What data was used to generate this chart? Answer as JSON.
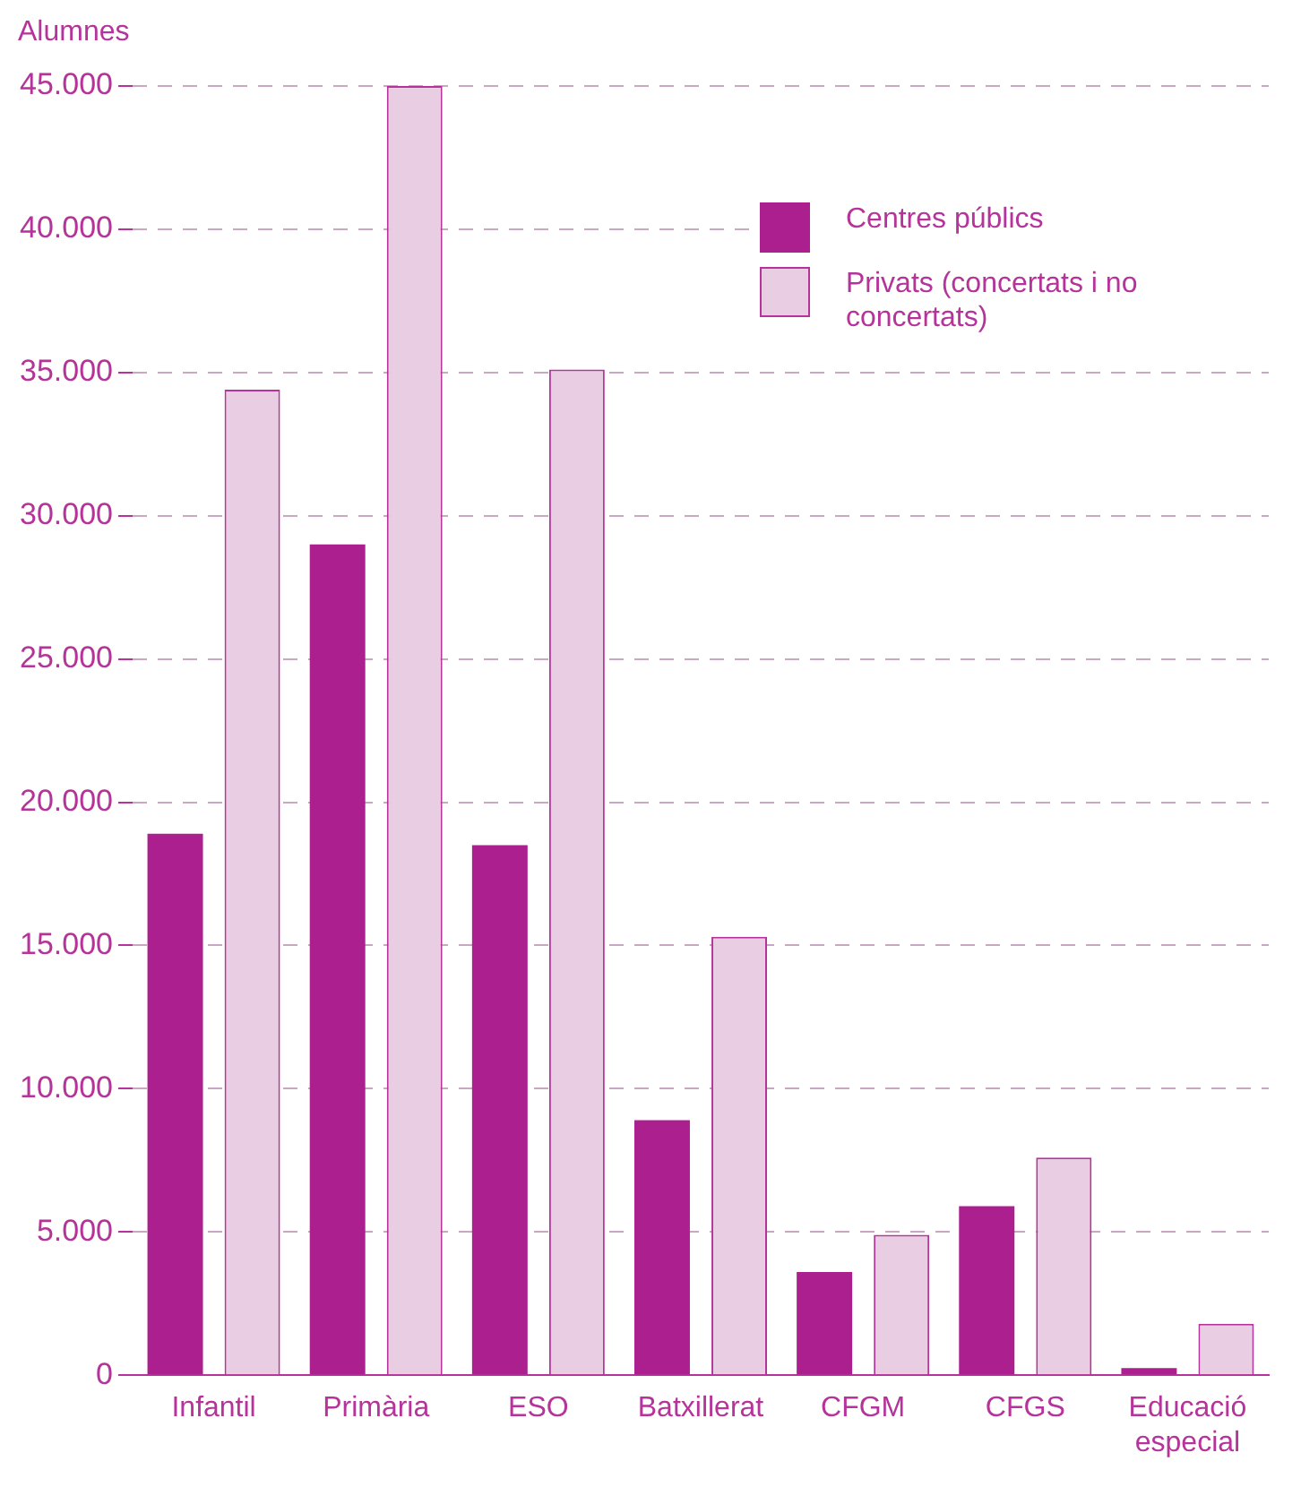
{
  "chart_data": {
    "type": "bar",
    "ylabel": "Alumnes",
    "categories": [
      "Infantil",
      "Primària",
      "ESO",
      "Batxillerat",
      "CFGM",
      "CFGS",
      "Educació especial"
    ],
    "series": [
      {
        "name": "Centres públics",
        "color": "#ac1f8f",
        "values": [
          18900,
          29000,
          18500,
          8900,
          3600,
          5900,
          250
        ]
      },
      {
        "name": "Privats (concertats i no concertats)",
        "color": "#e8cde3",
        "values": [
          34400,
          45000,
          35100,
          15300,
          4900,
          7600,
          1800
        ]
      }
    ],
    "ylim": [
      0,
      45000
    ],
    "yticks": [
      {
        "value": 0,
        "label": "0"
      },
      {
        "value": 5000,
        "label": "5.000"
      },
      {
        "value": 10000,
        "label": "10.000"
      },
      {
        "value": 15000,
        "label": "15.000"
      },
      {
        "value": 20000,
        "label": "20.000"
      },
      {
        "value": 25000,
        "label": "25.000"
      },
      {
        "value": 30000,
        "label": "30.000"
      },
      {
        "value": 35000,
        "label": "35.000"
      },
      {
        "value": 40000,
        "label": "40.000"
      },
      {
        "value": 45000,
        "label": "45.000"
      }
    ],
    "grid": "y",
    "legend": "top right"
  }
}
